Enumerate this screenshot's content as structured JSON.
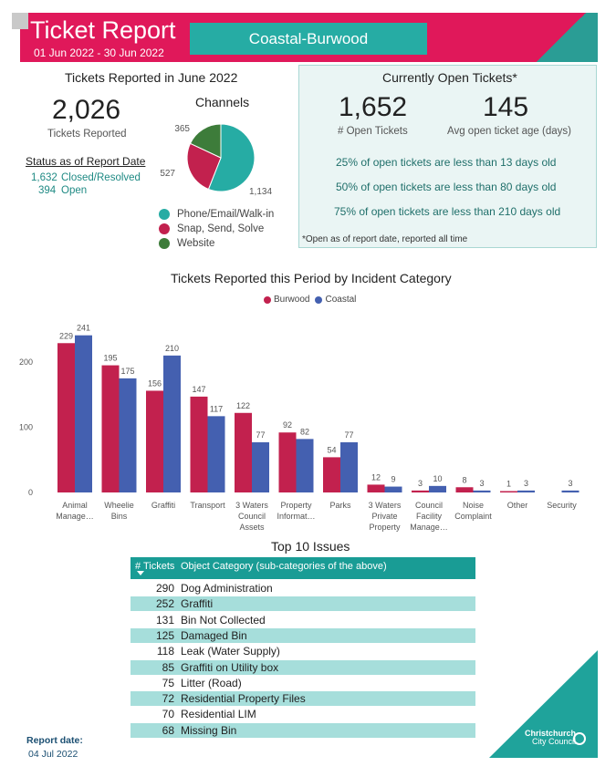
{
  "header": {
    "title": "Ticket Report",
    "date_range": "01 Jun 2022 - 30 Jun 2022",
    "location": "Coastal-Burwood",
    "colors": {
      "magenta": "#e0185a",
      "teal": "#1fa39b"
    }
  },
  "reported": {
    "section_title": "Tickets Reported in June 2022",
    "total": "2,026",
    "total_label": "Tickets Reported",
    "status_title": "Status as of Report Date",
    "closed_count": "1,632",
    "closed_label": "Closed/Resolved",
    "open_count": "394",
    "open_label": "Open"
  },
  "channels": {
    "title": "Channels",
    "slices": [
      {
        "name": "Phone/Email/Walk-in",
        "value": 1134,
        "label": "1,134",
        "color": "#26aca4"
      },
      {
        "name": "Snap, Send, Solve",
        "value": 527,
        "label": "527",
        "color": "#c2214e"
      },
      {
        "name": "Website",
        "value": 365,
        "label": "365",
        "color": "#3d7c3a"
      }
    ]
  },
  "open_tickets": {
    "title": "Currently Open Tickets*",
    "open_count": "1,652",
    "open_label": "# Open Tickets",
    "avg_age": "145",
    "avg_age_label": "Avg open ticket age (days)",
    "stat1": "25% of open tickets are less than 13 days old",
    "stat2": "50% of open tickets are less than 80 days old",
    "stat3": "75% of open tickets are less than 210 days old",
    "footnote": "*Open as of report date, reported all time"
  },
  "chart_data": {
    "type": "bar",
    "title": "Tickets Reported this Period by Incident Category",
    "categories": [
      [
        "Animal",
        "Manage…"
      ],
      [
        "Wheelie",
        "Bins"
      ],
      [
        "Graffiti"
      ],
      [
        "Transport"
      ],
      [
        "3 Waters",
        "Council",
        "Assets"
      ],
      [
        "Property",
        "Informat…"
      ],
      [
        "Parks"
      ],
      [
        "3 Waters",
        "Private",
        "Property"
      ],
      [
        "Council",
        "Facility",
        "Manage…"
      ],
      [
        "Noise",
        "Complaint"
      ],
      [
        "Other"
      ],
      [
        "Security"
      ]
    ],
    "series": [
      {
        "name": "Burwood",
        "color": "#c2214e",
        "values": [
          229,
          195,
          156,
          147,
          122,
          92,
          54,
          12,
          3,
          8,
          1,
          0
        ]
      },
      {
        "name": "Coastal",
        "color": "#4460b0",
        "values": [
          241,
          175,
          210,
          117,
          77,
          82,
          77,
          9,
          10,
          3,
          3,
          3
        ]
      }
    ],
    "y_ticks": [
      0,
      100,
      200
    ],
    "ylim": [
      0,
      260
    ],
    "legend_position": "top-center"
  },
  "top10": {
    "title": "Top 10 Issues",
    "col_tickets": "# Tickets",
    "col_category": "Object Category (sub-categories of the above)",
    "rows": [
      {
        "count": "290",
        "category": "Dog Administration"
      },
      {
        "count": "252",
        "category": "Graffiti"
      },
      {
        "count": "131",
        "category": "Bin Not Collected"
      },
      {
        "count": "125",
        "category": "Damaged Bin"
      },
      {
        "count": "118",
        "category": "Leak (Water Supply)"
      },
      {
        "count": "85",
        "category": "Graffiti on Utility box"
      },
      {
        "count": "75",
        "category": "Litter (Road)"
      },
      {
        "count": "72",
        "category": "Residential Property Files"
      },
      {
        "count": "70",
        "category": "Residential LIM"
      },
      {
        "count": "68",
        "category": "Missing Bin"
      }
    ]
  },
  "footer": {
    "report_date_label": "Report date:",
    "report_date": "04 Jul 2022",
    "logo_line1": "Christchurch",
    "logo_line2": "City Council"
  }
}
